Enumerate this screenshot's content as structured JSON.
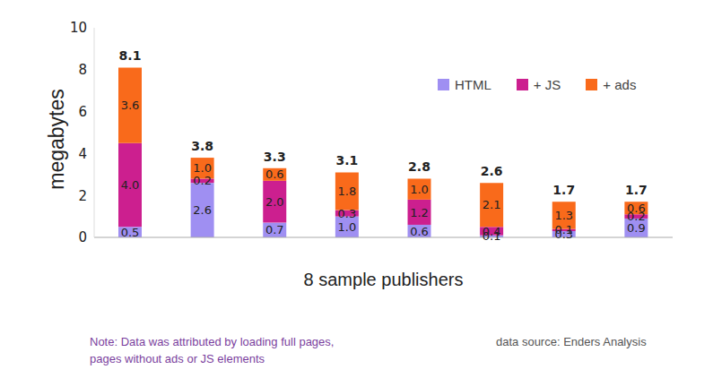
{
  "chart_data": {
    "type": "bar",
    "stacked": true,
    "data_labels": true,
    "grid": false,
    "legend": "upper right",
    "x_label": "8 sample publishers",
    "y_label": "megabytes",
    "note": "Note: Data was attributed by loading full pages, pages without ads or JS elements",
    "source": "data source: Enders Analysis",
    "categories": [
      null,
      null,
      null,
      null,
      null,
      null,
      null,
      null
    ],
    "ylim": [
      0,
      10
    ],
    "yticks": [
      0,
      2,
      4,
      6,
      8,
      10
    ],
    "series": [
      {
        "name": "HTML",
        "color": "#9f8ff2",
        "values": [
          0.5,
          2.6,
          0.7,
          1.0,
          0.6,
          0.1,
          0.3,
          0.9
        ],
        "value_labels": [
          "0.5",
          "2.6",
          "0.7",
          "1.0",
          "0.6",
          "0.1",
          "0.3",
          "0.9"
        ]
      },
      {
        "name": "+ JS",
        "color": "#cc1f8f",
        "values": [
          4.0,
          0.2,
          2.0,
          0.3,
          1.2,
          0.4,
          0.1,
          0.2
        ],
        "value_labels": [
          "4.0",
          "0.2",
          "2.0",
          "0.3",
          "1.2",
          "0.4",
          "0.1",
          "0.2"
        ]
      },
      {
        "name": "+ ads",
        "color": "#f96a1b",
        "values": [
          3.6,
          1.0,
          0.6,
          1.8,
          1.0,
          2.1,
          1.3,
          0.6
        ],
        "value_labels": [
          "3.6",
          "1.0",
          "0.6",
          "1.8",
          "1.0",
          "2.1",
          "1.3",
          "0.6"
        ]
      }
    ],
    "totals": [
      8.1,
      3.8,
      3.3,
      3.1,
      2.8,
      2.6,
      1.7,
      1.7
    ]
  }
}
